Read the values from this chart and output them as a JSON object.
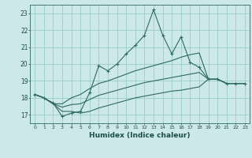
{
  "xlabel": "Humidex (Indice chaleur)",
  "background_color": "#cce8e8",
  "grid_color": "#99cccc",
  "line_color": "#2d6b5e",
  "xlim": [
    -0.5,
    23.5
  ],
  "ylim": [
    16.5,
    23.5
  ],
  "xticks": [
    0,
    1,
    2,
    3,
    4,
    5,
    6,
    7,
    8,
    9,
    10,
    11,
    12,
    13,
    14,
    15,
    16,
    17,
    18,
    19,
    20,
    21,
    22,
    23
  ],
  "yticks": [
    17,
    18,
    19,
    20,
    21,
    22,
    23
  ],
  "x": [
    0,
    1,
    2,
    3,
    4,
    5,
    6,
    7,
    8,
    9,
    10,
    11,
    12,
    13,
    14,
    15,
    16,
    17,
    18,
    19,
    20,
    21,
    22,
    23
  ],
  "y_main": [
    18.2,
    18.0,
    17.7,
    16.9,
    17.1,
    17.2,
    18.3,
    19.9,
    19.6,
    20.0,
    20.6,
    21.1,
    21.7,
    23.2,
    21.7,
    20.6,
    21.6,
    20.1,
    19.8,
    19.1,
    19.1,
    18.85,
    18.85,
    18.85
  ],
  "y_upper": [
    18.2,
    18.0,
    17.65,
    17.65,
    18.0,
    18.2,
    18.55,
    18.85,
    19.0,
    19.2,
    19.4,
    19.6,
    19.75,
    19.9,
    20.05,
    20.2,
    20.4,
    20.55,
    20.65,
    19.1,
    19.1,
    18.85,
    18.85,
    18.85
  ],
  "y_mid": [
    18.2,
    18.0,
    17.65,
    17.45,
    17.6,
    17.65,
    17.9,
    18.15,
    18.3,
    18.45,
    18.6,
    18.75,
    18.9,
    19.0,
    19.1,
    19.2,
    19.3,
    19.4,
    19.5,
    19.1,
    19.1,
    18.85,
    18.85,
    18.85
  ],
  "y_lower": [
    18.2,
    18.0,
    17.65,
    17.2,
    17.2,
    17.1,
    17.2,
    17.4,
    17.55,
    17.7,
    17.85,
    18.0,
    18.1,
    18.2,
    18.3,
    18.4,
    18.45,
    18.55,
    18.65,
    19.1,
    19.1,
    18.85,
    18.85,
    18.85
  ]
}
